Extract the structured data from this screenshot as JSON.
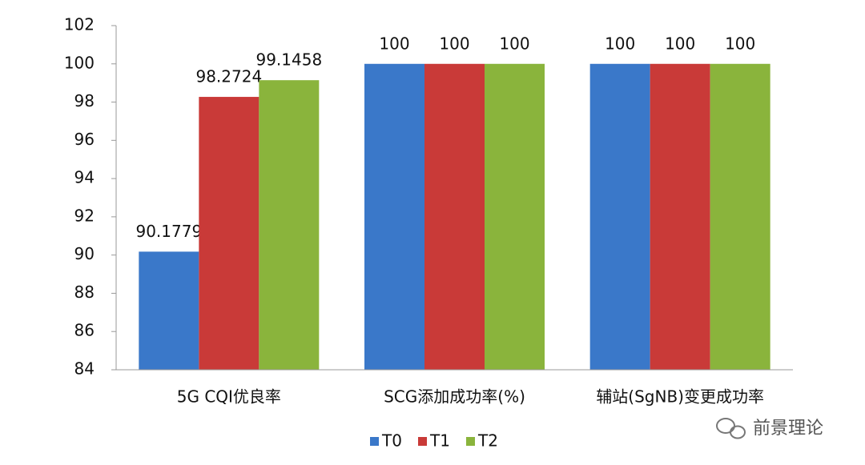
{
  "chart_data": {
    "type": "bar",
    "categories": [
      "5G CQI优良率",
      "SCG添加成功率(%)",
      "辅站(SgNB)变更成功率"
    ],
    "series": [
      {
        "name": "T0",
        "color": "#3a78c9",
        "values": [
          90.1779,
          100,
          100
        ]
      },
      {
        "name": "T1",
        "color": "#c93a38",
        "values": [
          98.2724,
          100,
          100
        ]
      },
      {
        "name": "T2",
        "color": "#8ab43c",
        "values": [
          99.1458,
          100,
          100
        ]
      }
    ],
    "ylim": [
      84,
      102
    ],
    "yticks": [
      84,
      86,
      88,
      90,
      92,
      94,
      96,
      98,
      100,
      102
    ],
    "legend": "bottom"
  },
  "watermark": "前景理论"
}
